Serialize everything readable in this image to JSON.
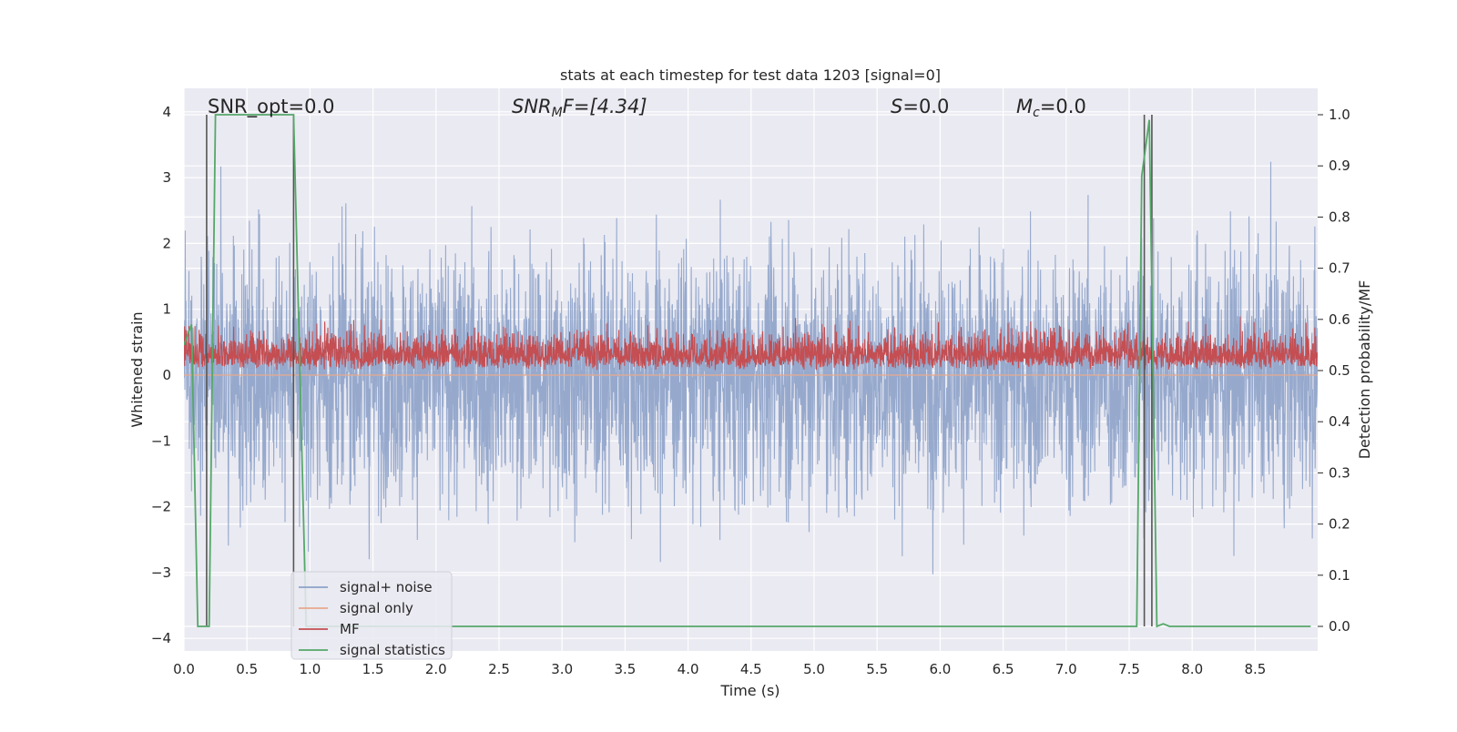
{
  "chart_data": {
    "type": "line",
    "title": "stats at each timestep for test data 1203 [signal=0]",
    "xlabel": "Time (s)",
    "ylabel": "Whitened strain",
    "ylabel_right": "Detection probability/MF",
    "xlim": [
      0.0,
      9.0
    ],
    "ylim": [
      -4.4,
      4.4
    ],
    "ylim_right": [
      -0.05,
      1.05
    ],
    "x_ticks": [
      0.0,
      0.5,
      1.0,
      1.5,
      2.0,
      2.5,
      3.0,
      3.5,
      4.0,
      4.5,
      5.0,
      5.5,
      6.0,
      6.5,
      7.0,
      7.5,
      8.0,
      8.5
    ],
    "x_tick_labels": [
      "0.0",
      "0.5",
      "1.0",
      "1.5",
      "2.0",
      "2.5",
      "3.0",
      "3.5",
      "4.0",
      "4.5",
      "5.0",
      "5.5",
      "6.0",
      "6.5",
      "7.0",
      "7.5",
      "8.0",
      "8.5"
    ],
    "y_ticks": [
      -4,
      -3,
      -2,
      -1,
      0,
      1,
      2,
      3,
      4
    ],
    "y_tick_labels": [
      "−4",
      "−3",
      "−2",
      "−1",
      "0",
      "1",
      "2",
      "3",
      "4"
    ],
    "y_right_ticks": [
      0.0,
      0.1,
      0.2,
      0.3,
      0.4,
      0.5,
      0.6,
      0.7,
      0.8,
      0.9,
      1.0
    ],
    "y_right_tick_labels": [
      "0.0",
      "0.1",
      "0.2",
      "0.3",
      "0.4",
      "0.5",
      "0.6",
      "0.7",
      "0.8",
      "0.9",
      "1.0"
    ],
    "grid": true,
    "legend_position": "lower-left",
    "annotations": {
      "snr_opt": "SNR_opt=0.0",
      "snr_mf_italic": "SNR",
      "snr_mf_sub": "M",
      "snr_mf_rest": "F=[4.34]",
      "s_italic": "S",
      "s_rest": "=0.0",
      "mc_italic": "M",
      "mc_sub": "c",
      "mc_rest": "=0.0"
    },
    "series": [
      {
        "name": "signal+ noise",
        "axis": "left",
        "color": "#8da2c9",
        "description": "whitened noise, amplitude mostly within ±2.5 with peaks near ±3.5",
        "range": [
          -3.8,
          3.55
        ]
      },
      {
        "name": "signal only",
        "axis": "left",
        "color": "#e8a98c",
        "values": "flat at 0"
      },
      {
        "name": "MF",
        "axis": "right",
        "color": "#c44e52",
        "range": [
          0.5,
          0.62
        ]
      },
      {
        "name": "signal statistics",
        "axis": "right",
        "color": "#55a868",
        "x": [
          0.0,
          0.06,
          0.11,
          0.17,
          0.2,
          0.25,
          0.3,
          0.4,
          0.5,
          0.6,
          0.7,
          0.8,
          0.87,
          0.97,
          1.0,
          2.0,
          3.0,
          4.0,
          5.0,
          6.0,
          7.0,
          7.5,
          7.56,
          7.6,
          7.66,
          7.72,
          7.77,
          7.82,
          8.0,
          8.5,
          8.94
        ],
        "y": [
          0.55,
          0.59,
          0.0,
          0.0,
          0.0,
          1.0,
          1.0,
          1.0,
          1.0,
          1.0,
          1.0,
          1.0,
          1.0,
          0.0,
          0.0,
          0.0,
          0.0,
          0.0,
          0.0,
          0.0,
          0.0,
          0.0,
          0.0,
          0.88,
          0.99,
          0.0,
          0.005,
          0.0,
          0.0,
          0.0,
          0.0
        ]
      }
    ],
    "vertical_markers": [
      0.18,
      0.87,
      7.62,
      7.68
    ]
  },
  "legend": {
    "items": [
      {
        "label": "signal+ noise",
        "color": "#8da2c9"
      },
      {
        "label": "signal only",
        "color": "#e8a98c"
      },
      {
        "label": "MF",
        "color": "#c44e52"
      },
      {
        "label": "signal statistics",
        "color": "#55a868"
      }
    ]
  }
}
